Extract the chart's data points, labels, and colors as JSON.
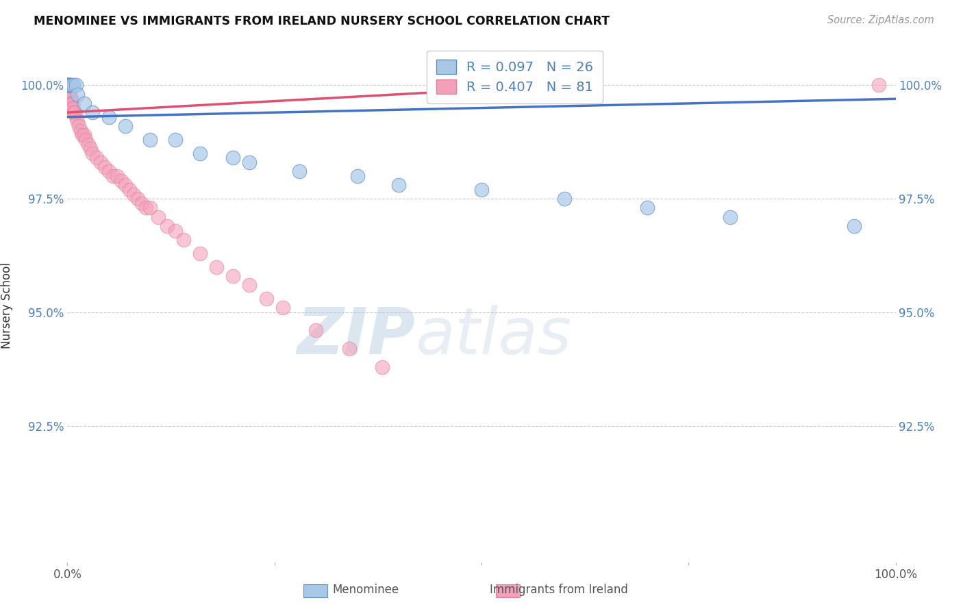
{
  "title": "MENOMINEE VS IMMIGRANTS FROM IRELAND NURSERY SCHOOL CORRELATION CHART",
  "source": "Source: ZipAtlas.com",
  "ylabel": "Nursery School",
  "legend_label_blue": "Menominee",
  "legend_label_pink": "Immigrants from Ireland",
  "r_blue": 0.097,
  "n_blue": 26,
  "r_pink": 0.407,
  "n_pink": 81,
  "xlim": [
    0.0,
    1.0
  ],
  "ylim": [
    0.895,
    1.008
  ],
  "yticks": [
    0.925,
    0.95,
    0.975,
    1.0
  ],
  "ytick_labels": [
    "92.5%",
    "95.0%",
    "97.5%",
    "100.0%"
  ],
  "color_blue": "#a8c8e8",
  "color_pink": "#f4a0b8",
  "color_blue_line": "#4472c4",
  "color_pink_line": "#e05070",
  "color_text": "#4a80c0",
  "color_grid": "#cccccc",
  "blue_x": [
    0.001,
    0.001,
    0.002,
    0.003,
    0.004,
    0.005,
    0.007,
    0.01,
    0.012,
    0.02,
    0.03,
    0.05,
    0.07,
    0.1,
    0.13,
    0.16,
    0.2,
    0.22,
    0.28,
    0.35,
    0.4,
    0.5,
    0.6,
    0.7,
    0.8,
    0.95
  ],
  "blue_y": [
    1.0,
    1.0,
    1.0,
    1.0,
    1.0,
    1.0,
    1.0,
    1.0,
    0.998,
    0.996,
    0.994,
    0.993,
    0.991,
    0.988,
    0.988,
    0.985,
    0.984,
    0.983,
    0.981,
    0.98,
    0.978,
    0.977,
    0.975,
    0.973,
    0.971,
    0.969
  ],
  "pink_x": [
    0.0,
    0.0,
    0.0,
    0.0,
    0.0,
    0.0,
    0.0,
    0.0,
    0.0,
    0.0,
    0.0,
    0.0,
    0.0,
    0.0,
    0.0,
    0.0,
    0.0,
    0.0,
    0.0,
    0.0,
    0.0,
    0.001,
    0.001,
    0.001,
    0.001,
    0.001,
    0.001,
    0.002,
    0.002,
    0.002,
    0.002,
    0.003,
    0.003,
    0.003,
    0.004,
    0.004,
    0.005,
    0.005,
    0.006,
    0.006,
    0.007,
    0.008,
    0.009,
    0.01,
    0.012,
    0.014,
    0.016,
    0.018,
    0.02,
    0.022,
    0.025,
    0.028,
    0.03,
    0.035,
    0.04,
    0.045,
    0.05,
    0.055,
    0.06,
    0.065,
    0.07,
    0.075,
    0.08,
    0.085,
    0.09,
    0.095,
    0.1,
    0.11,
    0.12,
    0.13,
    0.14,
    0.16,
    0.18,
    0.2,
    0.22,
    0.24,
    0.26,
    0.3,
    0.34,
    0.38,
    0.98
  ],
  "pink_y": [
    1.0,
    1.0,
    1.0,
    1.0,
    1.0,
    1.0,
    1.0,
    1.0,
    0.999,
    0.999,
    0.999,
    0.999,
    0.998,
    0.998,
    0.998,
    0.997,
    0.997,
    0.997,
    0.996,
    0.996,
    0.995,
    1.0,
    0.999,
    0.999,
    0.998,
    0.998,
    0.997,
    0.999,
    0.998,
    0.997,
    0.997,
    0.998,
    0.997,
    0.996,
    0.997,
    0.996,
    0.997,
    0.996,
    0.996,
    0.995,
    0.995,
    0.994,
    0.994,
    0.993,
    0.992,
    0.991,
    0.99,
    0.989,
    0.989,
    0.988,
    0.987,
    0.986,
    0.985,
    0.984,
    0.983,
    0.982,
    0.981,
    0.98,
    0.98,
    0.979,
    0.978,
    0.977,
    0.976,
    0.975,
    0.974,
    0.973,
    0.973,
    0.971,
    0.969,
    0.968,
    0.966,
    0.963,
    0.96,
    0.958,
    0.956,
    0.953,
    0.951,
    0.946,
    0.942,
    0.938,
    1.0
  ],
  "blue_trend_x": [
    0.0,
    1.0
  ],
  "blue_trend_y": [
    0.993,
    0.997
  ],
  "pink_trend_x": [
    0.0,
    0.6
  ],
  "pink_trend_y": [
    0.994,
    1.0
  ]
}
